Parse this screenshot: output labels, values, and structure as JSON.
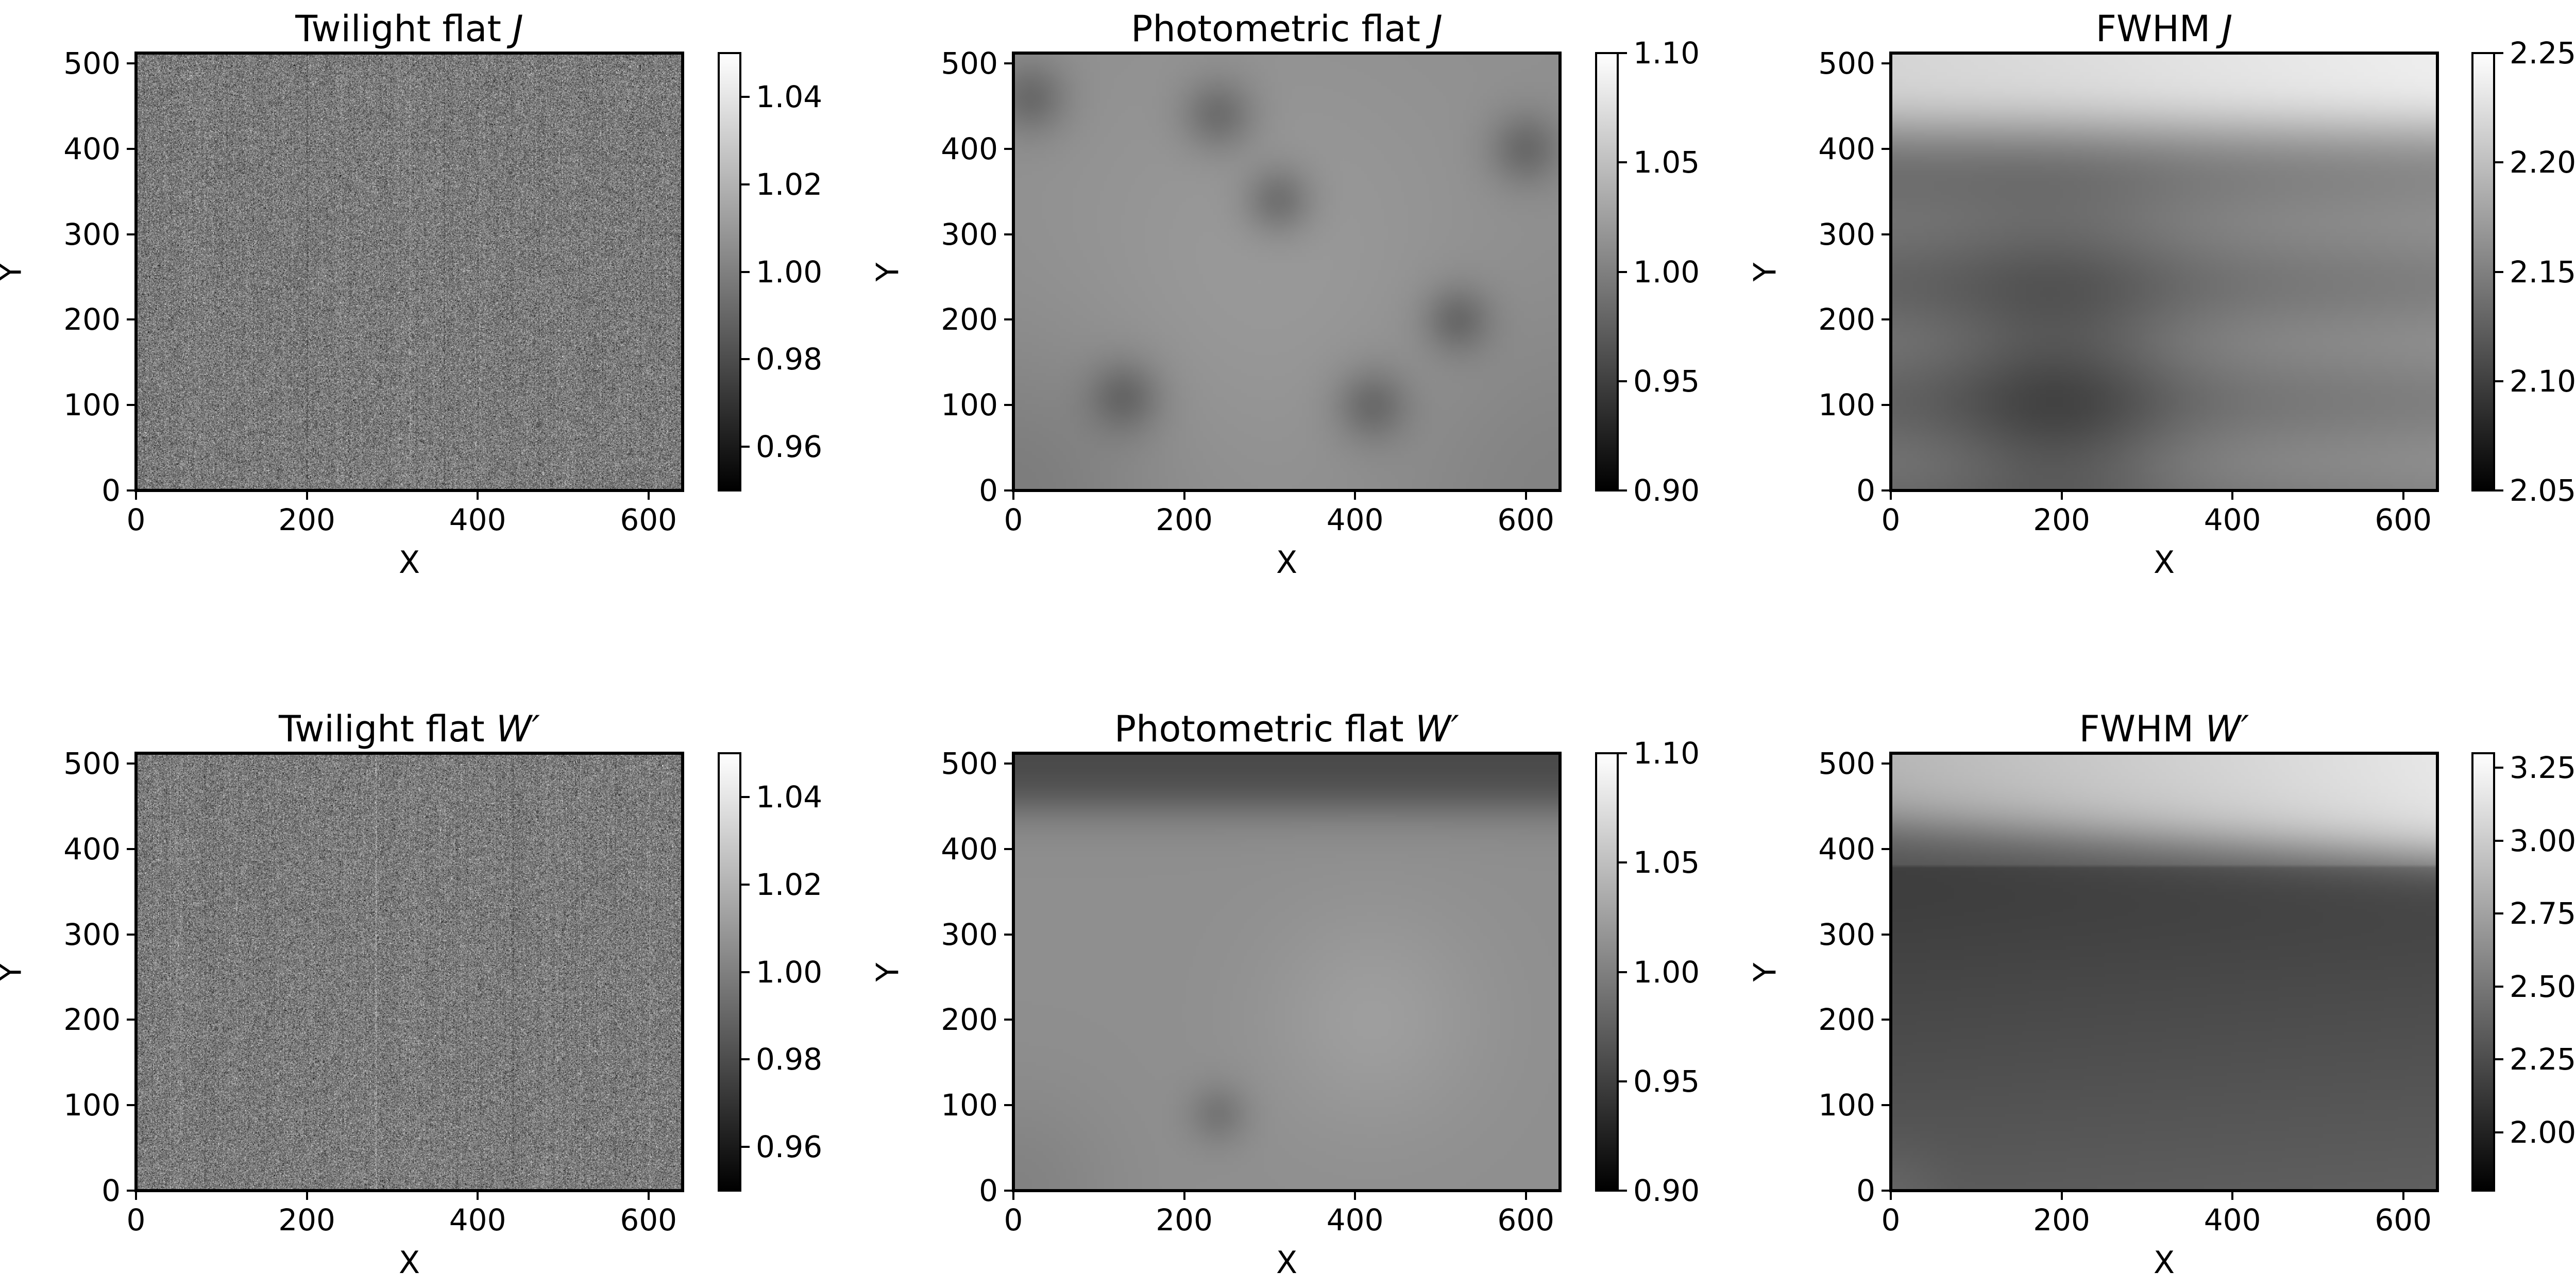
{
  "chart_data": [
    {
      "type": "heatmap",
      "title": "Twilight flat",
      "title_italic": "J",
      "xlabel": "X",
      "ylabel": "Y",
      "xlim": [
        0,
        640
      ],
      "ylim": [
        0,
        512
      ],
      "xticks": [
        "0",
        "200",
        "400",
        "600"
      ],
      "yticks": [
        "0",
        "100",
        "200",
        "300",
        "400",
        "500"
      ],
      "colormap": "gray",
      "clim": [
        0.95,
        1.05
      ],
      "cbar_ticks": [
        "0.96",
        "0.98",
        "1.00",
        "1.02",
        "1.04"
      ],
      "pattern": "noise"
    },
    {
      "type": "heatmap",
      "title": "Photometric flat",
      "title_italic": "J",
      "xlabel": "X",
      "ylabel": "Y",
      "xlim": [
        0,
        640
      ],
      "ylim": [
        0,
        512
      ],
      "xticks": [
        "0",
        "200",
        "400",
        "600"
      ],
      "yticks": [
        "0",
        "100",
        "200",
        "300",
        "400",
        "500"
      ],
      "colormap": "gray",
      "clim": [
        0.9,
        1.1
      ],
      "cbar_ticks": [
        "0.90",
        "0.95",
        "1.00",
        "1.05",
        "1.10"
      ],
      "pattern": "photJ"
    },
    {
      "type": "heatmap",
      "title": "FWHM",
      "title_italic": "J",
      "xlabel": "X",
      "ylabel": "Y",
      "xlim": [
        0,
        640
      ],
      "ylim": [
        0,
        512
      ],
      "xticks": [
        "0",
        "200",
        "400",
        "600"
      ],
      "yticks": [
        "0",
        "100",
        "200",
        "300",
        "400",
        "500"
      ],
      "colormap": "gray",
      "clim": [
        2.05,
        2.25
      ],
      "cbar_ticks": [
        "2.05",
        "2.10",
        "2.15",
        "2.20",
        "2.25"
      ],
      "pattern": "fwhmJ"
    },
    {
      "type": "heatmap",
      "title": "Twilight flat",
      "title_italic": "W′",
      "xlabel": "X",
      "ylabel": "Y",
      "xlim": [
        0,
        640
      ],
      "ylim": [
        0,
        512
      ],
      "xticks": [
        "0",
        "200",
        "400",
        "600"
      ],
      "yticks": [
        "0",
        "100",
        "200",
        "300",
        "400",
        "500"
      ],
      "colormap": "gray",
      "clim": [
        0.95,
        1.05
      ],
      "cbar_ticks": [
        "0.96",
        "0.98",
        "1.00",
        "1.02",
        "1.04"
      ],
      "pattern": "noise"
    },
    {
      "type": "heatmap",
      "title": "Photometric flat",
      "title_italic": "W′",
      "xlabel": "X",
      "ylabel": "Y",
      "xlim": [
        0,
        640
      ],
      "ylim": [
        0,
        512
      ],
      "xticks": [
        "0",
        "200",
        "400",
        "600"
      ],
      "yticks": [
        "0",
        "100",
        "200",
        "300",
        "400",
        "500"
      ],
      "colormap": "gray",
      "clim": [
        0.9,
        1.1
      ],
      "cbar_ticks": [
        "0.90",
        "0.95",
        "1.00",
        "1.05",
        "1.10"
      ],
      "pattern": "photW"
    },
    {
      "type": "heatmap",
      "title": "FWHM",
      "title_italic": "W′",
      "xlabel": "X",
      "ylabel": "Y",
      "xlim": [
        0,
        640
      ],
      "ylim": [
        0,
        512
      ],
      "xticks": [
        "0",
        "200",
        "400",
        "600"
      ],
      "yticks": [
        "0",
        "100",
        "200",
        "300",
        "400",
        "500"
      ],
      "colormap": "gray",
      "clim": [
        1.8,
        3.3
      ],
      "cbar_ticks": [
        "2.00",
        "2.25",
        "2.50",
        "2.75",
        "3.00",
        "3.25"
      ],
      "pattern": "fwhmW"
    }
  ]
}
